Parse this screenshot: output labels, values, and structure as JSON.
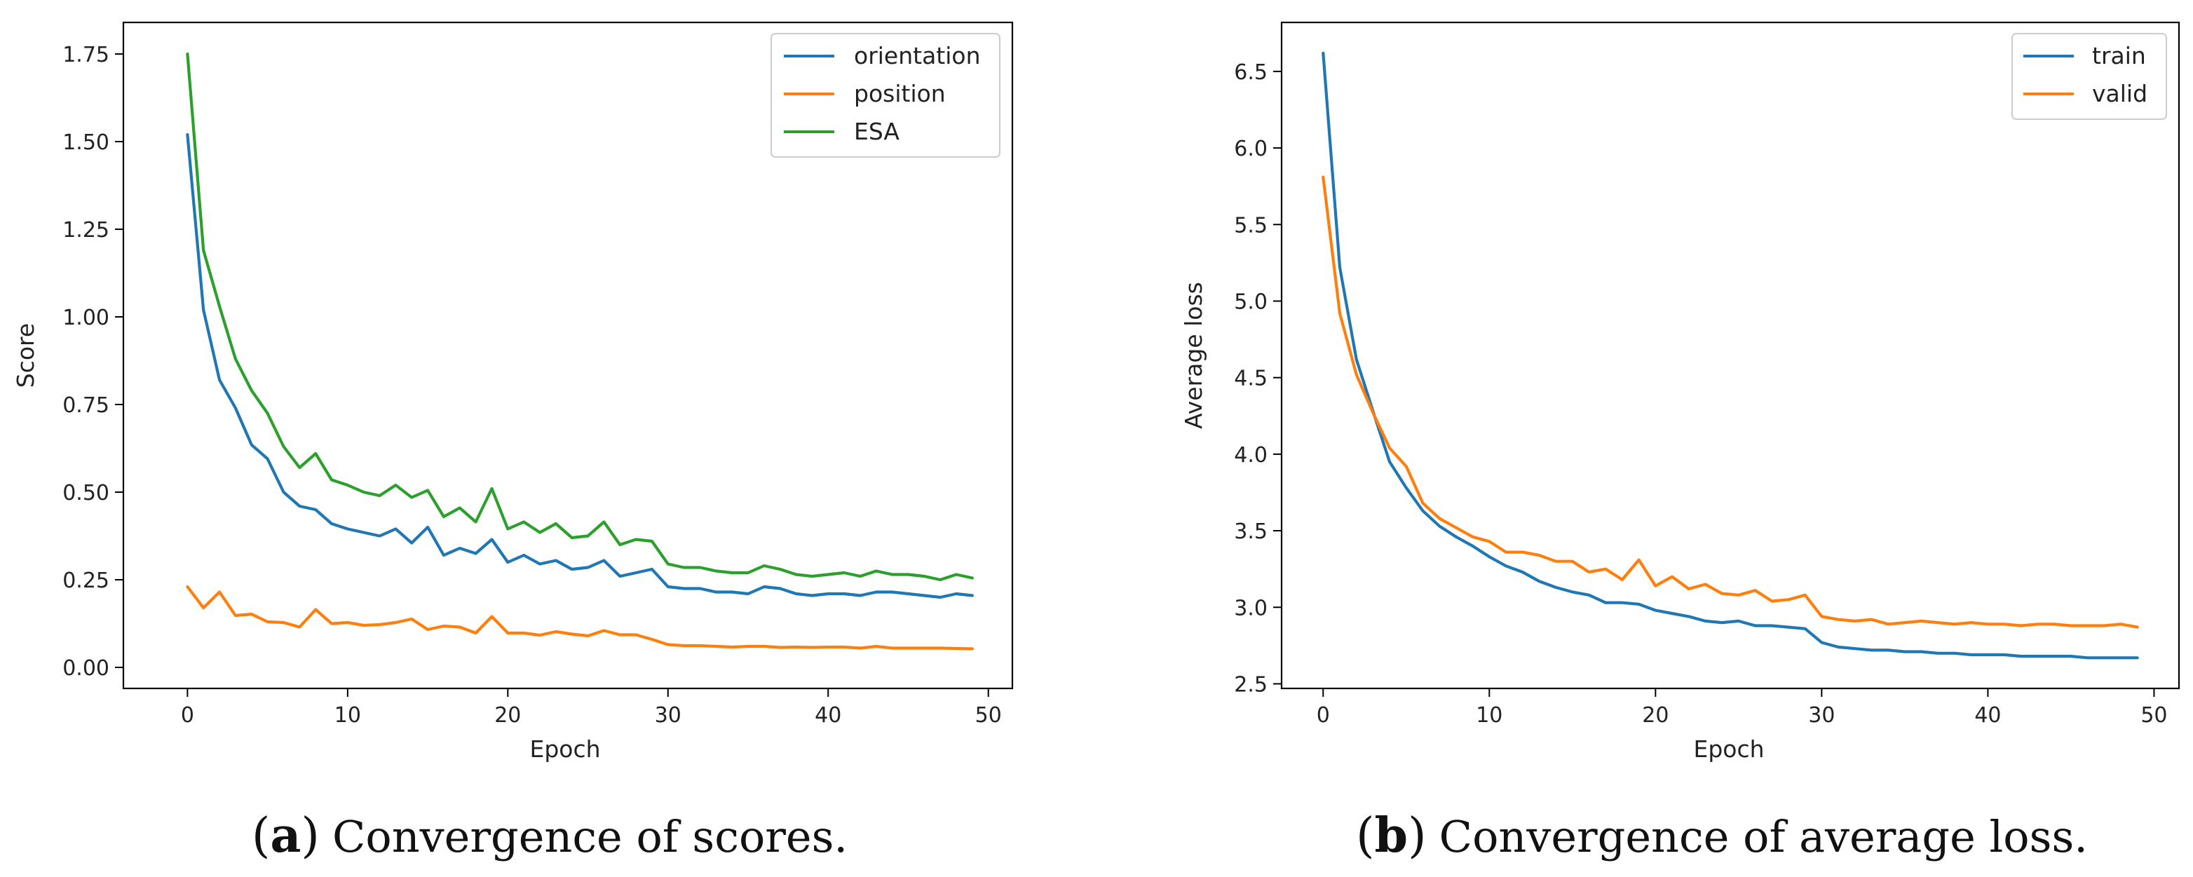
{
  "chart_data": [
    {
      "type": "line",
      "title": "",
      "xlabel": "Epoch",
      "ylabel": "Score",
      "xlim": [
        -4,
        51.5
      ],
      "ylim": [
        -0.06,
        1.84
      ],
      "xticks": [
        0,
        10,
        20,
        30,
        40,
        50
      ],
      "xtick_labels": [
        "0",
        "10",
        "20",
        "30",
        "40",
        "50"
      ],
      "yticks": [
        0.0,
        0.25,
        0.5,
        0.75,
        1.0,
        1.25,
        1.5,
        1.75
      ],
      "ytick_labels": [
        "0.00",
        "0.25",
        "0.50",
        "0.75",
        "1.00",
        "1.25",
        "1.50",
        "1.75"
      ],
      "legend_position": "top-right",
      "x": [
        0,
        1,
        2,
        3,
        4,
        5,
        6,
        7,
        8,
        9,
        10,
        11,
        12,
        13,
        14,
        15,
        16,
        17,
        18,
        19,
        20,
        21,
        22,
        23,
        24,
        25,
        26,
        27,
        28,
        29,
        30,
        31,
        32,
        33,
        34,
        35,
        36,
        37,
        38,
        39,
        40,
        41,
        42,
        43,
        44,
        45,
        46,
        47,
        48,
        49
      ],
      "series": [
        {
          "name": "orientation",
          "color": "#1f77b4",
          "values": [
            1.52,
            1.02,
            0.82,
            0.74,
            0.635,
            0.595,
            0.5,
            0.46,
            0.45,
            0.41,
            0.395,
            0.385,
            0.375,
            0.395,
            0.355,
            0.4,
            0.32,
            0.34,
            0.325,
            0.365,
            0.3,
            0.32,
            0.295,
            0.305,
            0.28,
            0.285,
            0.305,
            0.26,
            0.27,
            0.28,
            0.23,
            0.225,
            0.225,
            0.215,
            0.215,
            0.21,
            0.23,
            0.225,
            0.21,
            0.205,
            0.21,
            0.21,
            0.205,
            0.215,
            0.215,
            0.21,
            0.205,
            0.2,
            0.21,
            0.205
          ]
        },
        {
          "name": "position",
          "color": "#ff7f0e",
          "values": [
            0.23,
            0.17,
            0.215,
            0.148,
            0.152,
            0.13,
            0.128,
            0.115,
            0.165,
            0.125,
            0.128,
            0.12,
            0.122,
            0.128,
            0.138,
            0.108,
            0.118,
            0.115,
            0.098,
            0.145,
            0.098,
            0.098,
            0.092,
            0.102,
            0.095,
            0.09,
            0.105,
            0.093,
            0.093,
            0.08,
            0.065,
            0.062,
            0.062,
            0.06,
            0.058,
            0.06,
            0.06,
            0.057,
            0.058,
            0.057,
            0.058,
            0.058,
            0.055,
            0.06,
            0.055,
            0.055,
            0.055,
            0.055,
            0.054,
            0.053
          ]
        },
        {
          "name": "ESA",
          "color": "#2ca02c",
          "values": [
            1.75,
            1.19,
            1.03,
            0.88,
            0.79,
            0.725,
            0.63,
            0.57,
            0.61,
            0.535,
            0.52,
            0.5,
            0.49,
            0.52,
            0.485,
            0.505,
            0.43,
            0.455,
            0.415,
            0.51,
            0.395,
            0.415,
            0.385,
            0.41,
            0.37,
            0.375,
            0.415,
            0.35,
            0.365,
            0.36,
            0.295,
            0.285,
            0.285,
            0.275,
            0.27,
            0.27,
            0.29,
            0.28,
            0.265,
            0.26,
            0.265,
            0.27,
            0.26,
            0.275,
            0.265,
            0.265,
            0.26,
            0.25,
            0.265,
            0.255
          ]
        }
      ]
    },
    {
      "type": "line",
      "title": "",
      "xlabel": "Epoch",
      "ylabel": "Average loss",
      "xlim": [
        -2.5,
        51.5
      ],
      "ylim": [
        2.47,
        6.82
      ],
      "xticks": [
        0,
        10,
        20,
        30,
        40,
        50
      ],
      "xtick_labels": [
        "0",
        "10",
        "20",
        "30",
        "40",
        "50"
      ],
      "yticks": [
        2.5,
        3.0,
        3.5,
        4.0,
        4.5,
        5.0,
        5.5,
        6.0,
        6.5
      ],
      "ytick_labels": [
        "2.5",
        "3.0",
        "3.5",
        "4.0",
        "4.5",
        "5.0",
        "5.5",
        "6.0",
        "6.5"
      ],
      "legend_position": "top-right",
      "x": [
        0,
        1,
        2,
        3,
        4,
        5,
        6,
        7,
        8,
        9,
        10,
        11,
        12,
        13,
        14,
        15,
        16,
        17,
        18,
        19,
        20,
        21,
        22,
        23,
        24,
        25,
        26,
        27,
        28,
        29,
        30,
        31,
        32,
        33,
        34,
        35,
        36,
        37,
        38,
        39,
        40,
        41,
        42,
        43,
        44,
        45,
        46,
        47,
        48,
        49
      ],
      "series": [
        {
          "name": "train",
          "color": "#1f77b4",
          "values": [
            6.62,
            5.22,
            4.62,
            4.28,
            3.95,
            3.78,
            3.63,
            3.53,
            3.46,
            3.4,
            3.33,
            3.27,
            3.23,
            3.17,
            3.13,
            3.1,
            3.08,
            3.03,
            3.03,
            3.02,
            2.98,
            2.96,
            2.94,
            2.91,
            2.9,
            2.91,
            2.88,
            2.88,
            2.87,
            2.86,
            2.77,
            2.74,
            2.73,
            2.72,
            2.72,
            2.71,
            2.71,
            2.7,
            2.7,
            2.69,
            2.69,
            2.69,
            2.68,
            2.68,
            2.68,
            2.68,
            2.67,
            2.67,
            2.67,
            2.67
          ]
        },
        {
          "name": "valid",
          "color": "#ff7f0e",
          "values": [
            5.81,
            4.92,
            4.52,
            4.27,
            4.04,
            3.92,
            3.68,
            3.58,
            3.52,
            3.46,
            3.43,
            3.36,
            3.36,
            3.34,
            3.3,
            3.3,
            3.23,
            3.25,
            3.18,
            3.31,
            3.14,
            3.2,
            3.12,
            3.15,
            3.09,
            3.08,
            3.11,
            3.04,
            3.05,
            3.08,
            2.94,
            2.92,
            2.91,
            2.92,
            2.89,
            2.9,
            2.91,
            2.9,
            2.89,
            2.9,
            2.89,
            2.89,
            2.88,
            2.89,
            2.89,
            2.88,
            2.88,
            2.88,
            2.89,
            2.87
          ]
        }
      ]
    }
  ],
  "captions": [
    {
      "letter": "a",
      "text": "Convergence of scores."
    },
    {
      "letter": "b",
      "text": "Convergence of average loss."
    }
  ]
}
